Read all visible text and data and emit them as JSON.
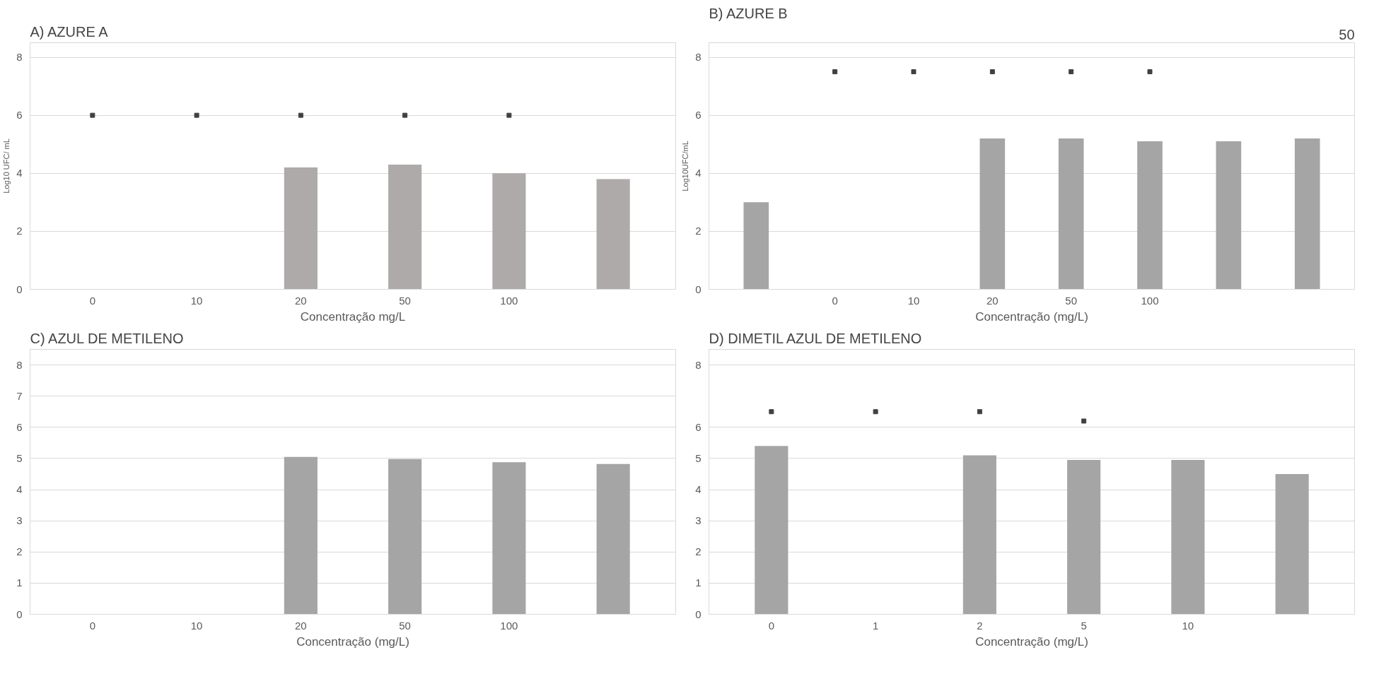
{
  "chart_data": [
    {
      "type": "bar",
      "title": "A) AZURE A",
      "xlabel": "Concentração mg/L",
      "ylabel": "Log10 UFC/ mL",
      "categories": [
        "0",
        "10",
        "20",
        "50",
        "100",
        null
      ],
      "ylim": [
        0,
        8.5
      ],
      "yticks": [
        0,
        2,
        4,
        6,
        8
      ],
      "grid": "y",
      "series": [
        {
          "color": "#adaaa9",
          "values": [
            null,
            null,
            4.2,
            4.3,
            4.0,
            3.8
          ]
        },
        {
          "type": "scatter",
          "marker": "square",
          "color": "#404040",
          "values": [
            6,
            6,
            6,
            6,
            6,
            null
          ]
        }
      ]
    },
    {
      "type": "bar",
      "title": "B) AZURE B",
      "xlabel": "Concentração (mg/L)",
      "ylabel": "Log10UFC/mL",
      "annotations": [
        "50"
      ],
      "categories": [
        null,
        "0",
        "10",
        "20",
        "50",
        "100",
        null,
        null
      ],
      "ylim": [
        0,
        8.5
      ],
      "yticks": [
        0,
        2,
        4,
        6,
        8
      ],
      "grid": "y",
      "series": [
        {
          "color": "#a5a5a5",
          "values": [
            3.0,
            null,
            null,
            5.2,
            5.2,
            5.1,
            5.1,
            5.2
          ]
        },
        {
          "type": "scatter",
          "marker": "square",
          "color": "#404040",
          "values": [
            null,
            7.5,
            7.5,
            7.5,
            7.5,
            7.5,
            null,
            null
          ]
        }
      ]
    },
    {
      "type": "bar",
      "title": "C) AZUL DE METILENO",
      "xlabel": "Concentração (mg/L)",
      "categories": [
        "0",
        "10",
        "20",
        "50",
        "100",
        null
      ],
      "ylim": [
        0,
        8.5
      ],
      "yticks": [
        0,
        1,
        2,
        3,
        4,
        5,
        6,
        7,
        8
      ],
      "grid": "y",
      "series": [
        {
          "color": "#a5a5a5",
          "values": [
            null,
            null,
            5.05,
            4.98,
            4.88,
            4.82
          ]
        }
      ]
    },
    {
      "type": "bar",
      "title": "D) DIMETIL AZUL DE METILENO",
      "xlabel": "Concentração (mg/L)",
      "categories": [
        "0",
        "1",
        "2",
        "5",
        "10",
        null
      ],
      "ylim": [
        0,
        8.5
      ],
      "yticks": [
        0,
        1,
        2,
        3,
        4,
        5,
        6,
        8
      ],
      "grid": "y",
      "series": [
        {
          "color": "#a5a5a5",
          "values": [
            5.4,
            null,
            5.1,
            4.95,
            4.95,
            4.5
          ]
        },
        {
          "type": "scatter",
          "marker": "square",
          "color": "#404040",
          "values": [
            6.5,
            6.5,
            6.5,
            6.2,
            null,
            null
          ]
        }
      ]
    }
  ]
}
